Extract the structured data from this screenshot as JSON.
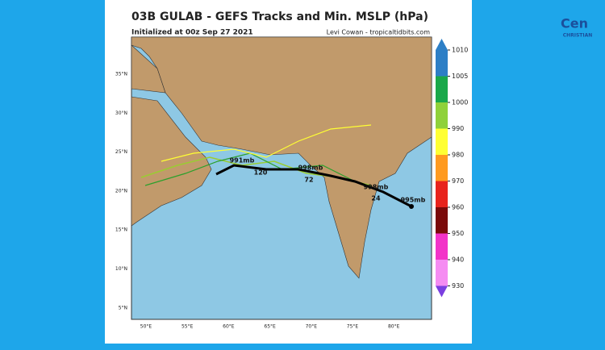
{
  "header": {
    "title": "03B GULAB - GEFS Tracks and Min. MSLP (hPa)",
    "subtitle": "Initialized at 00z Sep 27 2021",
    "credit": "Levi Cowan - tropicaltidbits.com"
  },
  "logo": {
    "name": "Cen",
    "tagline": "CHRISTIAN"
  },
  "map": {
    "latitudes": [
      "35°N",
      "30°N",
      "25°N",
      "20°N",
      "15°N",
      "10°N",
      "5°N"
    ],
    "longitudes": [
      "50°E",
      "55°E",
      "60°E",
      "65°E",
      "70°E",
      "75°E",
      "80°E"
    ],
    "track_labels": [
      "991mb",
      "120",
      "998mb",
      "72",
      "998mb",
      "24",
      "995mb"
    ]
  },
  "colorbar": {
    "ticks": [
      1010,
      1005,
      1000,
      990,
      980,
      970,
      960,
      950,
      940,
      930
    ]
  }
}
